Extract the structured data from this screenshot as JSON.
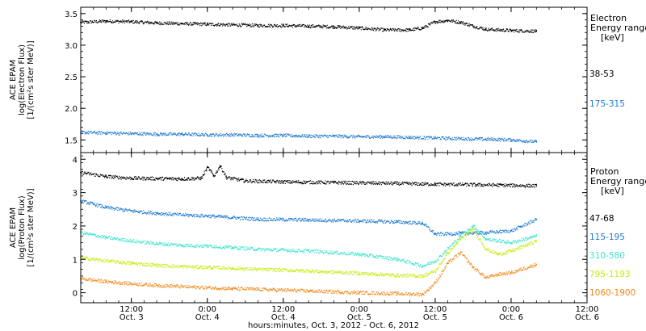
{
  "chart_data": {
    "type": "scatter",
    "xlabel": "hours:minutes, Oct. 3, 2012 - Oct. 6, 2012",
    "x_unit": "hours since 2012-10-03 00:00",
    "xlim": [
      4,
      84
    ],
    "x_ticks": [
      {
        "x": 12,
        "time": "12:00",
        "date": "Oct. 3"
      },
      {
        "x": 24,
        "time": "0:00",
        "date": "Oct. 4"
      },
      {
        "x": 36,
        "time": "12:00",
        "date": "Oct. 4"
      },
      {
        "x": 48,
        "time": "0:00",
        "date": "Oct. 5"
      },
      {
        "x": 60,
        "time": "12:00",
        "date": "Oct. 5"
      },
      {
        "x": 72,
        "time": "0:00",
        "date": "Oct. 6"
      },
      {
        "x": 84,
        "time": "12:00",
        "date": "Oct. 6"
      }
    ],
    "panels": [
      {
        "id": "electron",
        "ylabel": [
          "ACE EPAM",
          "log(Electron Flux)",
          "[1/(cm²s ster MeV)]"
        ],
        "ylim": [
          1.3,
          3.6
        ],
        "y_ticks": [
          1.5,
          2.0,
          2.5,
          3.0,
          3.5
        ],
        "legend_title": [
          "Electron",
          "Energy ranges",
          "[keV]"
        ],
        "series": [
          {
            "name": "38-53",
            "color": "#000000",
            "points": [
              [
                4,
                3.36
              ],
              [
                8,
                3.38
              ],
              [
                12,
                3.37
              ],
              [
                16,
                3.35
              ],
              [
                20,
                3.34
              ],
              [
                24,
                3.33
              ],
              [
                28,
                3.32
              ],
              [
                32,
                3.31
              ],
              [
                36,
                3.31
              ],
              [
                40,
                3.3
              ],
              [
                44,
                3.29
              ],
              [
                48,
                3.27
              ],
              [
                52,
                3.24
              ],
              [
                56,
                3.24
              ],
              [
                58,
                3.27
              ],
              [
                60,
                3.37
              ],
              [
                62,
                3.39
              ],
              [
                64,
                3.36
              ],
              [
                66,
                3.3
              ],
              [
                68,
                3.25
              ],
              [
                72,
                3.23
              ],
              [
                76,
                3.22
              ]
            ]
          },
          {
            "name": "175-315",
            "color": "#1f7ad0",
            "points": [
              [
                4,
                1.62
              ],
              [
                8,
                1.61
              ],
              [
                12,
                1.6
              ],
              [
                16,
                1.59
              ],
              [
                20,
                1.59
              ],
              [
                24,
                1.58
              ],
              [
                28,
                1.58
              ],
              [
                32,
                1.57
              ],
              [
                36,
                1.57
              ],
              [
                40,
                1.56
              ],
              [
                44,
                1.56
              ],
              [
                48,
                1.55
              ],
              [
                52,
                1.55
              ],
              [
                56,
                1.54
              ],
              [
                60,
                1.53
              ],
              [
                64,
                1.52
              ],
              [
                68,
                1.51
              ],
              [
                72,
                1.5
              ],
              [
                76,
                1.47
              ]
            ]
          }
        ]
      },
      {
        "id": "proton",
        "ylabel": [
          "ACE EPAM",
          "log(Proton Flux)",
          "[1/(cm²s ster MeV)]"
        ],
        "ylim": [
          -0.3,
          4.2
        ],
        "y_ticks": [
          0,
          1,
          2,
          3,
          4
        ],
        "legend_title": [
          "Proton",
          "Energy ranges",
          "[keV]"
        ],
        "series": [
          {
            "name": "47-68",
            "color": "#000000",
            "points": [
              [
                4,
                3.6
              ],
              [
                8,
                3.48
              ],
              [
                12,
                3.43
              ],
              [
                16,
                3.42
              ],
              [
                20,
                3.41
              ],
              [
                23,
                3.43
              ],
              [
                24,
                3.75
              ],
              [
                25,
                3.5
              ],
              [
                26,
                3.8
              ],
              [
                27,
                3.45
              ],
              [
                30,
                3.35
              ],
              [
                36,
                3.32
              ],
              [
                44,
                3.3
              ],
              [
                52,
                3.28
              ],
              [
                60,
                3.25
              ],
              [
                68,
                3.23
              ],
              [
                76,
                3.2
              ]
            ]
          },
          {
            "name": "115-195",
            "color": "#1f7ad0",
            "points": [
              [
                4,
                2.75
              ],
              [
                8,
                2.55
              ],
              [
                12,
                2.45
              ],
              [
                16,
                2.38
              ],
              [
                20,
                2.33
              ],
              [
                24,
                2.3
              ],
              [
                28,
                2.25
              ],
              [
                32,
                2.2
              ],
              [
                40,
                2.18
              ],
              [
                48,
                2.15
              ],
              [
                54,
                2.12
              ],
              [
                58,
                2.08
              ],
              [
                60,
                1.75
              ],
              [
                64,
                1.78
              ],
              [
                68,
                1.8
              ],
              [
                72,
                1.85
              ],
              [
                76,
                2.2
              ]
            ]
          },
          {
            "name": "310-580",
            "color": "#3fe3cc",
            "points": [
              [
                4,
                1.8
              ],
              [
                8,
                1.65
              ],
              [
                12,
                1.55
              ],
              [
                16,
                1.47
              ],
              [
                20,
                1.42
              ],
              [
                24,
                1.4
              ],
              [
                28,
                1.35
              ],
              [
                32,
                1.3
              ],
              [
                40,
                1.25
              ],
              [
                48,
                1.15
              ],
              [
                54,
                1.0
              ],
              [
                58,
                0.8
              ],
              [
                60,
                0.95
              ],
              [
                64,
                1.7
              ],
              [
                66,
                2.0
              ],
              [
                68,
                1.6
              ],
              [
                72,
                1.5
              ],
              [
                76,
                1.7
              ]
            ]
          },
          {
            "name": "795-1193",
            "color": "#c8ea0a",
            "points": [
              [
                4,
                1.05
              ],
              [
                8,
                0.95
              ],
              [
                12,
                0.88
              ],
              [
                16,
                0.82
              ],
              [
                20,
                0.78
              ],
              [
                24,
                0.76
              ],
              [
                28,
                0.73
              ],
              [
                32,
                0.7
              ],
              [
                40,
                0.65
              ],
              [
                48,
                0.58
              ],
              [
                54,
                0.52
              ],
              [
                58,
                0.5
              ],
              [
                60,
                0.65
              ],
              [
                62,
                1.2
              ],
              [
                64,
                1.6
              ],
              [
                66,
                1.9
              ],
              [
                68,
                1.3
              ],
              [
                70,
                1.15
              ],
              [
                72,
                1.25
              ],
              [
                76,
                1.55
              ]
            ]
          },
          {
            "name": "1060-1900",
            "color": "#f0891a",
            "points": [
              [
                4,
                0.42
              ],
              [
                8,
                0.33
              ],
              [
                12,
                0.27
              ],
              [
                16,
                0.22
              ],
              [
                20,
                0.18
              ],
              [
                24,
                0.15
              ],
              [
                28,
                0.12
              ],
              [
                32,
                0.1
              ],
              [
                40,
                0.05
              ],
              [
                48,
                0.0
              ],
              [
                54,
                -0.03
              ],
              [
                58,
                -0.05
              ],
              [
                60,
                0.3
              ],
              [
                62,
                0.9
              ],
              [
                64,
                1.2
              ],
              [
                66,
                0.75
              ],
              [
                68,
                0.45
              ],
              [
                70,
                0.55
              ],
              [
                72,
                0.6
              ],
              [
                76,
                0.85
              ]
            ]
          }
        ]
      }
    ]
  }
}
